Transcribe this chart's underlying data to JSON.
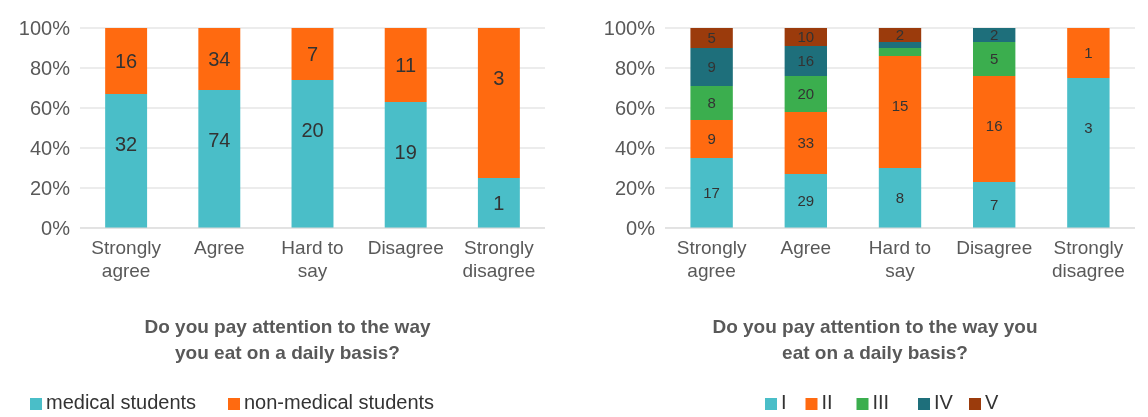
{
  "chart_data": [
    {
      "type": "bar",
      "stacked": true,
      "title": "Do you pay attention to the way you eat on a daily basis?",
      "categories": [
        "Strongly agree",
        "Agree",
        "Hard to say",
        "Disagree",
        "Strongly disagree"
      ],
      "series": [
        {
          "name": "medical students",
          "color": "#4abec8",
          "values": [
            67,
            69,
            74,
            63,
            25
          ]
        },
        {
          "name": "non-medical students",
          "color": "#ff6a10",
          "values": [
            33,
            31,
            26,
            37,
            75
          ]
        }
      ],
      "annotations": [
        {
          "text": "32",
          "x": "Strongly agree",
          "y": 67
        },
        {
          "text": "74",
          "x": "Agree",
          "y": 69
        },
        {
          "text": "20",
          "x": "Hard to say",
          "y": 74
        },
        {
          "text": "19",
          "x": "Disagree",
          "y": 63
        },
        {
          "text": "1",
          "x": "Strongly disagree",
          "y": 25
        },
        {
          "text": "16",
          "x": "Strongly agree",
          "y": 100
        },
        {
          "text": "34",
          "x": "Agree",
          "y": 100
        },
        {
          "text": "7",
          "x": "Hard to say",
          "y": 100
        },
        {
          "text": "11",
          "x": "Disagree",
          "y": 100
        },
        {
          "text": "3",
          "x": "Strongly disagree",
          "y": 100
        }
      ],
      "ylim": [
        0,
        100
      ],
      "yticks": [
        {
          "value": 0,
          "label": "0%"
        },
        {
          "value": 20,
          "label": "20%"
        },
        {
          "value": 40,
          "label": "40%"
        },
        {
          "value": 60,
          "label": "60%"
        },
        {
          "value": 80,
          "label": "80%"
        },
        {
          "value": 100,
          "label": "100%"
        }
      ],
      "grid": "y",
      "legend": "bottom"
    },
    {
      "type": "bar",
      "stacked": true,
      "title": "Do you pay attention to the way you eat on a daily basis?",
      "categories": [
        "Strongly agree",
        "Agree",
        "Hard to say",
        "Disagree",
        "Strongly disagree"
      ],
      "series": [
        {
          "name": "I",
          "color": "#4abec8",
          "values": [
            35,
            27,
            30,
            23,
            75
          ]
        },
        {
          "name": "II",
          "color": "#ff6a10",
          "values": [
            19,
            31,
            56,
            53,
            25
          ]
        },
        {
          "name": "III",
          "color": "#3bae4e",
          "values": [
            17,
            18,
            4,
            17,
            0
          ]
        },
        {
          "name": "IV",
          "color": "#1e6f7b",
          "values": [
            19,
            15,
            3,
            7,
            0
          ]
        },
        {
          "name": "V",
          "color": "#9b3b0c",
          "values": [
            10,
            9,
            7,
            0,
            0
          ]
        }
      ],
      "annotations": [
        {
          "text": "17",
          "x": "Strongly agree",
          "y": 35
        },
        {
          "text": "9",
          "x": "Strongly agree",
          "y": 54
        },
        {
          "text": "8",
          "x": "Strongly agree",
          "y": 71
        },
        {
          "text": "9",
          "x": "Strongly agree",
          "y": 90
        },
        {
          "text": "5",
          "x": "Strongly agree",
          "y": 100
        },
        {
          "text": "29",
          "x": "Agree",
          "y": 27
        },
        {
          "text": "33",
          "x": "Agree",
          "y": 58
        },
        {
          "text": "20",
          "x": "Agree",
          "y": 76
        },
        {
          "text": "16",
          "x": "Agree",
          "y": 91
        },
        {
          "text": "10",
          "x": "Agree",
          "y": 100
        },
        {
          "text": "8",
          "x": "Hard to say",
          "y": 30
        },
        {
          "text": "15",
          "x": "Hard to say",
          "y": 86
        },
        {
          "text": "2",
          "x": "Hard to say",
          "y": 100
        },
        {
          "text": "7",
          "x": "Disagree",
          "y": 23
        },
        {
          "text": "16",
          "x": "Disagree",
          "y": 76
        },
        {
          "text": "5",
          "x": "Disagree",
          "y": 93
        },
        {
          "text": "2",
          "x": "Disagree",
          "y": 100
        },
        {
          "text": "3",
          "x": "Strongly disagree",
          "y": 75
        },
        {
          "text": "1",
          "x": "Strongly disagree",
          "y": 100
        }
      ],
      "ylim": [
        0,
        100
      ],
      "yticks": [
        {
          "value": 0,
          "label": "0%"
        },
        {
          "value": 20,
          "label": "20%"
        },
        {
          "value": 40,
          "label": "40%"
        },
        {
          "value": 60,
          "label": "60%"
        },
        {
          "value": 80,
          "label": "80%"
        },
        {
          "value": 100,
          "label": "100%"
        }
      ],
      "grid": "y",
      "legend": "bottom"
    }
  ]
}
